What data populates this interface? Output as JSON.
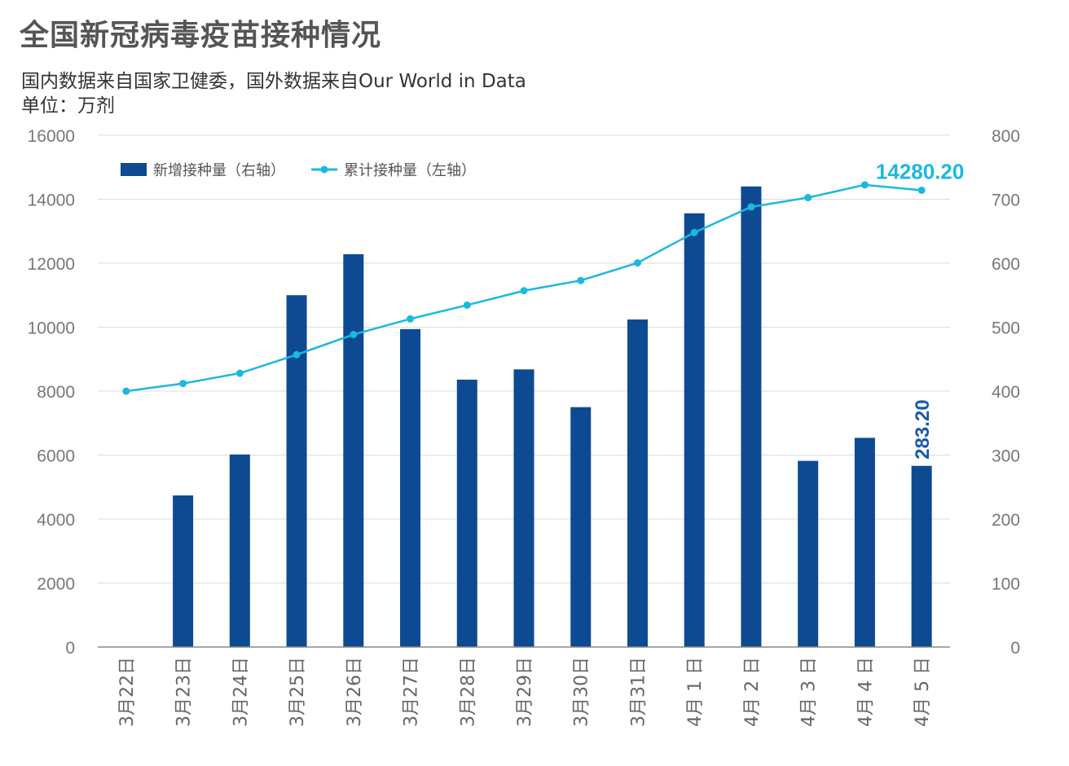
{
  "header": {
    "title": "全国新冠病毒疫苗接种情况",
    "subtitle": "国内数据来自国家卫健委，国外数据来自Our World in Data",
    "unit": "单位：万剂"
  },
  "colors": {
    "bar": "#0d4a92",
    "line": "#1bb8df",
    "grid": "#dddddd",
    "axis": "#888888"
  },
  "chart_data": {
    "type": "bar",
    "categories": [
      "3月22日",
      "3月23日",
      "3月24日",
      "3月25日",
      "3月26日",
      "3月27日",
      "3月28日",
      "3月29日",
      "3月30日",
      "3月31日",
      "4月 1 日",
      "4月 2 日",
      "4月 3 日",
      "4月 4 日",
      "4月 5 日"
    ],
    "series": [
      {
        "name": "新增接种量（右轴）",
        "type": "bar",
        "axis": "right",
        "values": [
          0,
          237,
          301,
          550,
          614,
          497,
          418,
          434,
          375,
          512,
          678,
          720,
          291,
          327,
          283.2
        ]
      },
      {
        "name": "累计接种量（左轴）",
        "type": "line",
        "axis": "left",
        "values": [
          8000,
          8240,
          8560,
          9140,
          9770,
          10260,
          10690,
          11140,
          11460,
          12010,
          12960,
          13760,
          14050,
          14450,
          14280.2
        ]
      }
    ],
    "y_left": {
      "ticks": [
        "0",
        "2000",
        "4000",
        "6000",
        "8000",
        "10000",
        "12000",
        "14000",
        "16000"
      ],
      "ylim": [
        0,
        16000
      ]
    },
    "y_right": {
      "ticks": [
        "0",
        "100",
        "200",
        "300",
        "400",
        "500",
        "600",
        "700",
        "800"
      ],
      "ylim": [
        0,
        800
      ]
    },
    "legend": {
      "position": "top-left",
      "bar_label": "新增接种量（右轴）",
      "line_label": "累计接种量（左轴）"
    },
    "annotations": {
      "line_last": "14280.20",
      "bar_last": "283.20"
    },
    "grid": true
  }
}
